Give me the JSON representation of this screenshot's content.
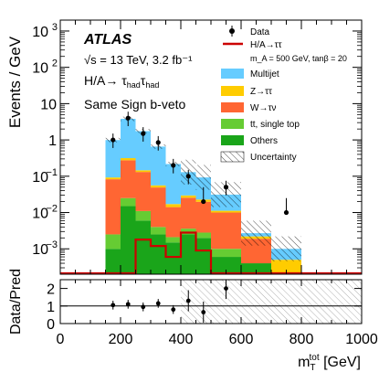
{
  "chart_data": [
    {
      "type": "bar",
      "panel": "main",
      "stacked": true,
      "ylabel": "Events / GeV",
      "ylog": true,
      "ylim": [
        0.0002,
        2000
      ],
      "yticks": [
        {
          "value": 0.001,
          "base": "10",
          "exp": "−3"
        },
        {
          "value": 0.01,
          "base": "10",
          "exp": "−2"
        },
        {
          "value": 0.1,
          "base": "10",
          "exp": "−1"
        },
        {
          "value": 1,
          "base": "1",
          "exp": ""
        },
        {
          "value": 10,
          "base": "10",
          "exp": ""
        },
        {
          "value": 100,
          "base": "10",
          "exp": "2"
        },
        {
          "value": 1000,
          "base": "10",
          "exp": "3"
        }
      ],
      "xlim": [
        0,
        1000
      ],
      "bin_edges": [
        150,
        200,
        250,
        300,
        350,
        400,
        450,
        500,
        600,
        700,
        800,
        1000
      ],
      "series": [
        {
          "name": "Others",
          "color": "#1aa51a",
          "values": [
            0.001,
            0.015,
            0.006,
            0.0025,
            0.0015,
            0.0025,
            0.002,
            0.0006,
            0.0004,
            0,
            0
          ]
        },
        {
          "name": "tt, single top",
          "color": "#66cc33",
          "values": [
            0.0015,
            0.01,
            0.005,
            0.0015,
            0.0006,
            0.0011,
            0.0008,
            0.0004,
            0,
            0,
            0
          ]
        },
        {
          "name": "W→τν",
          "color": "#ff6633",
          "values": [
            0.08,
            0.25,
            0.12,
            0.045,
            0.012,
            0.022,
            0.017,
            0.009,
            0.0015,
            0,
            0
          ]
        },
        {
          "name": "Z→ττ",
          "color": "#ffcc00",
          "values": [
            0.01,
            0.04,
            0.015,
            0.007,
            0.003,
            0.004,
            0.003,
            0.0012,
            0.0003,
            0.0005,
            0.0001
          ]
        },
        {
          "name": "Multijet",
          "color": "#66ccff",
          "values": [
            0.9,
            3.5,
            1.6,
            0.6,
            0.2,
            0.1,
            0.07,
            0.02,
            0.0005,
            0.0005,
            0
          ]
        }
      ],
      "signal": {
        "name": "H/A→ττ",
        "sublabel": "m_A = 500 GeV, tanβ = 20",
        "color": "#cc0000",
        "values": [
          0,
          0,
          0.0018,
          0.0012,
          0.0006,
          0.0028,
          0.0009,
          0,
          0,
          0,
          0
        ]
      },
      "data": {
        "name": "Data",
        "x": [
          175,
          225,
          275,
          325,
          375,
          425,
          475,
          550,
          750
        ],
        "y": [
          1,
          4,
          1.5,
          0.85,
          0.2,
          0.1,
          0.02,
          0.05,
          0.01
        ]
      },
      "uncertainty": {
        "name": "Uncertainty"
      },
      "annotations": {
        "experiment": "ATLAS",
        "energy": "√s = 13 TeV, 3.2 fb⁻¹",
        "process": "H/A→ τhadτhad",
        "region": "Same Sign b-veto"
      }
    },
    {
      "type": "scatter",
      "panel": "ratio",
      "ylabel": "Data/Pred",
      "ylim": [
        0,
        2.5
      ],
      "yticks": [
        0,
        1,
        2
      ],
      "xlabel": "m_T^tot [GeV]",
      "xticks": [
        0,
        200,
        400,
        600,
        800,
        1000
      ],
      "x": [
        175,
        225,
        275,
        325,
        375,
        425,
        475,
        550
      ],
      "y": [
        1.05,
        1.1,
        0.95,
        1.15,
        0.8,
        1.3,
        0.65,
        2.0
      ]
    }
  ],
  "legend": {
    "items": [
      "Data",
      "H/A→ττ",
      "m_A = 500 GeV, tanβ = 20",
      "Multijet",
      "Z→ττ",
      "W→τν",
      "tt, single top",
      "Others",
      "Uncertainty"
    ]
  }
}
